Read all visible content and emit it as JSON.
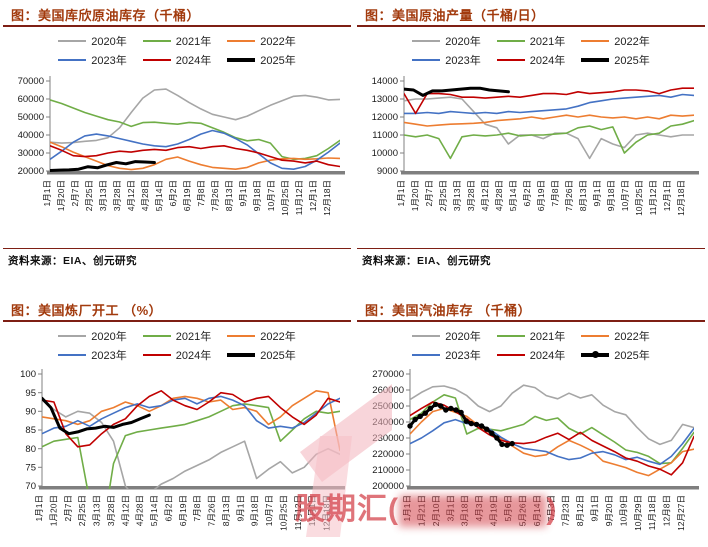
{
  "source_note": "资料来源：EIA、创元研究",
  "watermark": {
    "prefix": "股期汇(",
    "obscured": "████████",
    "suffix": ")"
  },
  "colors": {
    "y2020": "#A6A6A6",
    "y2021": "#70AD47",
    "y2022": "#ED7D31",
    "y2023": "#4472C4",
    "y2024": "#C00000",
    "y2025": "#000000",
    "title": "#A23A0D",
    "rule": "#7E1F14",
    "axis": "#7F7F7F"
  },
  "chart_data": [
    {
      "type": "line",
      "title": "图：美国库欣原油库存（千桶）",
      "ylim": [
        20000,
        70000
      ],
      "ystep": 10000,
      "grid": false,
      "legend_position": "top",
      "x_ticks": [
        "1月1日",
        "1月20日",
        "2月7日",
        "2月25日",
        "3月13日",
        "3月28日",
        "4月12日",
        "4月28日",
        "5月14日",
        "6月2日",
        "6月19日",
        "7月8日",
        "7月26日",
        "8月13日",
        "9月1日",
        "9月18日",
        "10月7日",
        "10月25日",
        "11月12日",
        "12月1日",
        "12月18日"
      ],
      "series": [
        {
          "name": "2020年",
          "color": "#A6A6A6",
          "values": [
            36000,
            35500,
            35800,
            36500,
            37000,
            38500,
            44000,
            52500,
            60500,
            65000,
            65500,
            62000,
            58000,
            54500,
            51500,
            50000,
            48500,
            50500,
            53500,
            56500,
            59000,
            61500,
            62000,
            61000,
            59500,
            59800
          ]
        },
        {
          "name": "2021年",
          "color": "#70AD47",
          "values": [
            59500,
            57500,
            55000,
            52500,
            50500,
            48500,
            47200,
            44800,
            46900,
            47100,
            46500,
            46000,
            47000,
            46500,
            44000,
            41500,
            38500,
            36800,
            37500,
            35500,
            28000,
            26500,
            27000,
            28500,
            32500,
            37000
          ]
        },
        {
          "name": "2022年",
          "color": "#ED7D31",
          "values": [
            36000,
            33500,
            30500,
            28000,
            25500,
            23000,
            21500,
            20800,
            21500,
            23500,
            26500,
            27800,
            25500,
            23500,
            22000,
            21500,
            21000,
            22000,
            24500,
            26000,
            26800,
            27000,
            26500,
            26800,
            27200,
            27000
          ]
        },
        {
          "name": "2023年",
          "color": "#4472C4",
          "values": [
            26500,
            31000,
            36000,
            39500,
            40500,
            39500,
            38000,
            36500,
            35000,
            34000,
            33500,
            35000,
            37500,
            40500,
            42500,
            41000,
            38000,
            34500,
            29500,
            24500,
            21500,
            21000,
            22500,
            26000,
            30500,
            35500
          ]
        },
        {
          "name": "2024年",
          "color": "#C00000",
          "values": [
            34000,
            31500,
            28500,
            28000,
            28500,
            30000,
            31000,
            30500,
            31500,
            32000,
            31500,
            33000,
            33500,
            32500,
            33500,
            34000,
            32500,
            31500,
            30000,
            28000,
            26000,
            25500,
            24500,
            25500,
            23500,
            22500
          ]
        },
        {
          "name": "2025年",
          "color": "#000000",
          "bold": true,
          "span": 0.36,
          "values": [
            20300,
            20500,
            20600,
            21000,
            22400,
            21800,
            23400,
            24700,
            24000,
            25200,
            25000,
            24700
          ]
        }
      ]
    },
    {
      "type": "line",
      "title": "图：美国原油产量（千桶/日）",
      "ylim": [
        9000,
        14000
      ],
      "ystep": 1000,
      "grid": false,
      "legend_position": "top",
      "x_ticks": [
        "1月1日",
        "1月20日",
        "2月7日",
        "2月25日",
        "3月13日",
        "3月28日",
        "4月12日",
        "4月28日",
        "5月14日",
        "6月2日",
        "6月19日",
        "7月8日",
        "7月26日",
        "8月13日",
        "9月1日",
        "9月18日",
        "10月7日",
        "10月25日",
        "11月12日",
        "12月1日",
        "12月18日"
      ],
      "series": [
        {
          "name": "2020年",
          "color": "#A6A6A6",
          "values": [
            12900,
            13000,
            13000,
            13050,
            13100,
            13000,
            12300,
            11600,
            11400,
            10500,
            11000,
            11000,
            10800,
            11100,
            11100,
            10800,
            9700,
            10800,
            10500,
            10300,
            11000,
            11100,
            11000,
            10900,
            11000,
            11000
          ]
        },
        {
          "name": "2021年",
          "color": "#70AD47",
          "values": [
            11000,
            10900,
            11000,
            10800,
            9700,
            10900,
            11000,
            10950,
            11000,
            11100,
            10950,
            11000,
            11000,
            11050,
            11100,
            11400,
            11500,
            11300,
            11450,
            10000,
            10600,
            11000,
            11100,
            11500,
            11600,
            11800
          ]
        },
        {
          "name": "2022年",
          "color": "#ED7D31",
          "values": [
            11700,
            11600,
            11500,
            11550,
            11600,
            11620,
            11650,
            11700,
            11800,
            11850,
            11900,
            12000,
            11900,
            12000,
            12100,
            12000,
            12100,
            12000,
            11950,
            12000,
            11900,
            12000,
            11900,
            12100,
            12050,
            12100
          ]
        },
        {
          "name": "2023年",
          "color": "#4472C4",
          "values": [
            12200,
            12200,
            12250,
            12200,
            12300,
            12250,
            12200,
            12250,
            12200,
            12300,
            12250,
            12300,
            12350,
            12400,
            12450,
            12600,
            12800,
            12900,
            13000,
            13050,
            13100,
            13150,
            13200,
            13100,
            13250,
            13200
          ]
        },
        {
          "name": "2024年",
          "color": "#C00000",
          "values": [
            13300,
            12200,
            13300,
            13300,
            13250,
            13100,
            13100,
            13050,
            13100,
            13150,
            13100,
            13200,
            13300,
            13300,
            13250,
            13400,
            13300,
            13350,
            13400,
            13500,
            13500,
            13450,
            13300,
            13500,
            13600,
            13600
          ]
        },
        {
          "name": "2025年",
          "color": "#000000",
          "bold": true,
          "span": 0.36,
          "values": [
            13550,
            13500,
            13200,
            13450,
            13450,
            13500,
            13550,
            13600,
            13600,
            13500,
            13450,
            13400
          ]
        }
      ]
    },
    {
      "type": "line",
      "title": "图：美国炼厂开工 （%）",
      "ylim": [
        70,
        100
      ],
      "ystep": 5,
      "grid": false,
      "legend_position": "top",
      "x_ticks": [
        "1月1日",
        "1月20日",
        "2月7日",
        "2月25日",
        "3月13日",
        "3月28日",
        "4月12日",
        "4月28日",
        "5月14日",
        "6月2日",
        "6月19日",
        "7月8日",
        "7月26日",
        "8月13日",
        "9月1日",
        "9月18日",
        "10月7日",
        "10月25日",
        "11月12日",
        "12月1日",
        "12月18日"
      ],
      "series": [
        {
          "name": "2020年",
          "color": "#A6A6A6",
          "values": [
            93,
            90.5,
            88.5,
            90,
            89.5,
            87,
            82,
            70,
            66,
            68,
            70.5,
            72,
            74,
            75.5,
            77,
            79,
            80.5,
            82,
            72,
            74.5,
            76.5,
            73.5,
            75,
            78.5,
            80,
            78.5
          ]
        },
        {
          "name": "2021年",
          "color": "#70AD47",
          "values": [
            80.5,
            82,
            82.5,
            83,
            66,
            56,
            76,
            83.5,
            84.5,
            85,
            85.5,
            86,
            86.5,
            87.5,
            88.5,
            90,
            91.5,
            92,
            91.5,
            91,
            82,
            85,
            88,
            90,
            89.5,
            90
          ]
        },
        {
          "name": "2022年",
          "color": "#ED7D31",
          "values": [
            88.5,
            88,
            87.5,
            86.5,
            87.5,
            90,
            91,
            92.5,
            91.5,
            90,
            91.5,
            93.5,
            94,
            93.5,
            92.5,
            93,
            90.5,
            91,
            90,
            86.5,
            88.5,
            91.5,
            93.5,
            95.5,
            95,
            79.5
          ]
        },
        {
          "name": "2023年",
          "color": "#4472C4",
          "values": [
            84,
            85.5,
            86,
            87.5,
            86,
            88,
            89.5,
            91,
            92,
            91,
            91.5,
            93,
            93.5,
            92,
            93.5,
            94,
            93,
            91.5,
            87.5,
            85.5,
            86,
            85.5,
            87,
            89.5,
            92,
            93.5
          ]
        },
        {
          "name": "2024年",
          "color": "#C00000",
          "values": [
            93,
            92.5,
            84,
            80.5,
            81,
            84,
            86.5,
            88,
            91.5,
            94,
            95.5,
            93,
            91.5,
            90.5,
            92.5,
            95,
            94.5,
            92.5,
            93.5,
            94,
            91,
            88.5,
            86.5,
            89,
            93.5,
            92.5
          ]
        },
        {
          "name": "2025年",
          "color": "#000000",
          "bold": true,
          "span": 0.36,
          "values": [
            93.5,
            91,
            85.5,
            84,
            84.5,
            85.3,
            85.5,
            86,
            85.7,
            86.5,
            87,
            88,
            89
          ]
        }
      ]
    },
    {
      "type": "line",
      "title": "图：美国汽油库存 （千桶）",
      "ylim": [
        200000,
        270000
      ],
      "ystep": 10000,
      "grid": false,
      "legend_position": "top",
      "x_ticks": [
        "1月1日",
        "1月21日",
        "2月10日",
        "3月1日",
        "3月18日",
        "4月3日",
        "4月19日",
        "5月6日",
        "5月26日",
        "6月14日",
        "7月3日",
        "7月23日",
        "8月12日",
        "9月1日",
        "9月20日",
        "10月9日",
        "10月29日",
        "11月18日",
        "12月8日",
        "12月27日"
      ],
      "series": [
        {
          "name": "2020年",
          "color": "#A6A6A6",
          "values": [
            254000,
            258500,
            262000,
            262500,
            260500,
            256500,
            250000,
            246500,
            250000,
            258000,
            263000,
            261500,
            256500,
            254500,
            258000,
            255000,
            257000,
            250500,
            246500,
            244500,
            236500,
            229500,
            226000,
            228500,
            238500,
            236500
          ]
        },
        {
          "name": "2021年",
          "color": "#70AD47",
          "values": [
            241500,
            245500,
            252500,
            257000,
            255000,
            232500,
            236000,
            235500,
            234500,
            236500,
            238500,
            243500,
            241000,
            242500,
            236000,
            232500,
            236500,
            232000,
            227500,
            222500,
            221000,
            218500,
            214000,
            214500,
            223500,
            233500
          ]
        },
        {
          "name": "2022年",
          "color": "#ED7D31",
          "values": [
            232500,
            240000,
            246500,
            248500,
            246000,
            243500,
            238000,
            233500,
            229500,
            225000,
            220500,
            218500,
            219500,
            224500,
            228500,
            225500,
            222000,
            215500,
            213500,
            211500,
            208500,
            206500,
            210500,
            214500,
            221500,
            223000
          ]
        },
        {
          "name": "2023年",
          "color": "#4472C4",
          "values": [
            226500,
            230000,
            234500,
            239500,
            241500,
            239000,
            238500,
            235500,
            230500,
            226500,
            223500,
            222500,
            221500,
            218500,
            216500,
            217500,
            220500,
            221500,
            219500,
            216500,
            218000,
            215500,
            213500,
            218500,
            226500,
            236000
          ]
        },
        {
          "name": "2024年",
          "color": "#C00000",
          "values": [
            244000,
            248500,
            252500,
            250500,
            246500,
            242000,
            236500,
            232000,
            228500,
            227000,
            226500,
            227500,
            230500,
            233000,
            229000,
            233500,
            228500,
            225000,
            221500,
            217500,
            215500,
            212500,
            210500,
            207000,
            214500,
            231000
          ]
        },
        {
          "name": "2025年",
          "color": "#000000",
          "bold": true,
          "marker": true,
          "span": 0.36,
          "values": [
            237500,
            241500,
            243500,
            245500,
            248500,
            251000,
            250000,
            247500,
            248500,
            247500,
            246000,
            240500,
            239000,
            238500,
            237500,
            235500,
            233000,
            230000,
            226000,
            225500,
            226500
          ]
        }
      ]
    }
  ]
}
